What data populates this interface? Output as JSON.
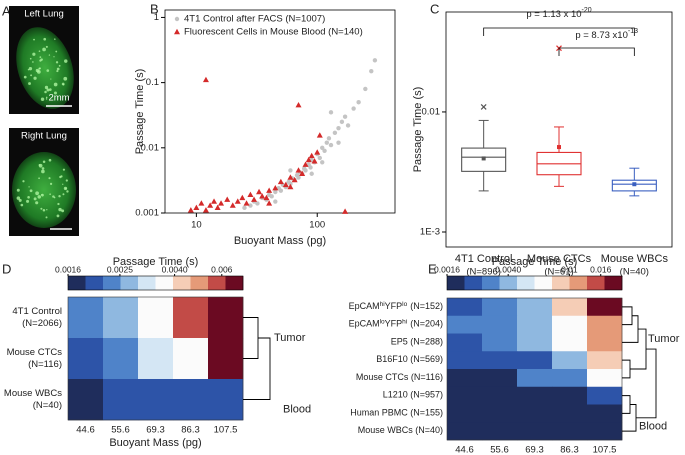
{
  "panel_a": {
    "label": "A",
    "images": [
      {
        "title": "Left Lung"
      },
      {
        "title": "Right Lung"
      }
    ],
    "scale_bar": "2mm"
  },
  "chart_data": [
    {
      "type": "scatter",
      "panel": "B",
      "x_label": "Buoyant Mass (pg)",
      "y_label": "Passage Time (s)",
      "xlog": true,
      "ylog": true,
      "xlim": [
        5.5,
        440
      ],
      "ylim": [
        0.001,
        1.3
      ],
      "xticks": [
        10,
        100
      ],
      "yticks": [
        0.001,
        0.01,
        0.1,
        1
      ],
      "legend": "upper left",
      "series": [
        {
          "name": "4T1 Control after FACS (N=1007)",
          "color": "#c4c4c4",
          "marker": "circle",
          "x": [
            25,
            28,
            30,
            32,
            35,
            38,
            40,
            42,
            45,
            48,
            50,
            52,
            55,
            58,
            60,
            62,
            65,
            68,
            70,
            72,
            75,
            78,
            80,
            85,
            88,
            90,
            95,
            100,
            105,
            110,
            115,
            120,
            125,
            130,
            140,
            150,
            160,
            170,
            180,
            200,
            220,
            250,
            280,
            300,
            130,
            60,
            90,
            45,
            110,
            150
          ],
          "values": [
            0.0012,
            0.0013,
            0.0015,
            0.0014,
            0.0017,
            0.0016,
            0.0019,
            0.0018,
            0.0021,
            0.0024,
            0.0022,
            0.0027,
            0.0025,
            0.003,
            0.0028,
            0.0034,
            0.0032,
            0.0038,
            0.0035,
            0.0042,
            0.004,
            0.0048,
            0.0045,
            0.0055,
            0.005,
            0.0065,
            0.006,
            0.008,
            0.007,
            0.01,
            0.009,
            0.012,
            0.014,
            0.011,
            0.017,
            0.02,
            0.025,
            0.03,
            0.022,
            0.04,
            0.05,
            0.08,
            0.15,
            0.22,
            0.035,
            0.0045,
            0.004,
            0.0015,
            0.006,
            0.012
          ]
        },
        {
          "name": "Fluorescent Cells in Mouse Blood (N=140)",
          "color": "#d42a2a",
          "marker": "triangle",
          "x": [
            9,
            10,
            11,
            12,
            13,
            14,
            15,
            16,
            18,
            20,
            22,
            24,
            26,
            28,
            30,
            33,
            35,
            38,
            40,
            45,
            50,
            55,
            60,
            65,
            70,
            75,
            80,
            85,
            90,
            95,
            100,
            12,
            70,
            105,
            170,
            60,
            40
          ],
          "values": [
            0.0011,
            0.0012,
            0.0014,
            0.0011,
            0.0013,
            0.0015,
            0.0012,
            0.0014,
            0.0016,
            0.0013,
            0.0015,
            0.0017,
            0.0014,
            0.0019,
            0.0016,
            0.0021,
            0.0018,
            0.0017,
            0.0022,
            0.0024,
            0.003,
            0.0027,
            0.0035,
            0.0032,
            0.0045,
            0.004,
            0.0055,
            0.0065,
            0.0075,
            0.0062,
            0.0085,
            0.11,
            0.045,
            0.0155,
            0.00105,
            0.0025,
            0.0014
          ]
        }
      ]
    },
    {
      "type": "box",
      "panel": "C",
      "y_label": "Passage Time (s)",
      "ylog": true,
      "ylim": [
        0.00075,
        0.068
      ],
      "yticks": [
        {
          "value": 0.001,
          "label": "1E-3"
        },
        0.01
      ],
      "categories": [
        "4T1 Control",
        "Mouse CTCs",
        "Mouse WBCs"
      ],
      "category_counts": [
        "(N=896)",
        "(N=61)",
        "(N=40)"
      ],
      "colors": [
        "#555555",
        "#e03030",
        "#3a5fc0"
      ],
      "boxes": [
        {
          "whisker_low": 0.0022,
          "q1": 0.0032,
          "median": 0.0042,
          "q3": 0.005,
          "whisker_high": 0.0085,
          "mean": 0.0041,
          "max": 0.011
        },
        {
          "whisker_low": 0.0024,
          "q1": 0.003,
          "median": 0.0037,
          "q3": 0.0046,
          "whisker_high": 0.0075,
          "mean": 0.0051,
          "max": 0.034
        },
        {
          "whisker_low": 0.002,
          "q1": 0.0022,
          "median": 0.0025,
          "q3": 0.0027,
          "whisker_high": 0.0034,
          "mean": 0.0025
        }
      ],
      "annotations": [
        {
          "text": "p = 1.13 x 10",
          "exponent": "-20"
        },
        {
          "text": "p = 8.73 x10",
          "exponent": "-13"
        }
      ]
    },
    {
      "type": "heatmap",
      "panel": "D",
      "colorbar_label": "Passage Time (s)",
      "x_label": "Buoyant Mass (pg)",
      "zlog": true,
      "zlim": [
        0.0016,
        0.0072
      ],
      "zticks": [
        0.0016,
        0.0025,
        {
          "value": 0.004,
          "label": "0.0040"
        },
        0.006
      ],
      "colormap": [
        "#1f2d5c",
        "#2d54a8",
        "#4f83c9",
        "#8fb8e0",
        "#d4e6f4",
        "#fbfbfb",
        "#f5cdb6",
        "#e59a78",
        "#c24b47",
        "#6b0a22"
      ],
      "categories": [
        44.6,
        55.6,
        69.3,
        86.3,
        107.5
      ],
      "rows": [
        {
          "name": "4T1 Control",
          "n": "(N=2066)"
        },
        {
          "name": "Mouse CTCs",
          "n": "(N=116)"
        },
        {
          "name": "Mouse WBCs",
          "n": "(N=40)"
        }
      ],
      "values": [
        [
          0.0022,
          0.0028,
          0.0037,
          0.0055,
          0.0072
        ],
        [
          0.0021,
          0.0022,
          0.003,
          0.0038,
          0.0072
        ],
        [
          0.0016,
          0.002,
          0.002,
          0.002,
          0.002
        ]
      ],
      "groups": [
        "Tumor",
        "Blood"
      ]
    },
    {
      "type": "heatmap",
      "panel": "E",
      "colorbar_label": "Passage Time (s)",
      "x_label": "Buoyant Mass (pg)",
      "zlog": true,
      "zlim": [
        0.0016,
        0.022
      ],
      "zticks": [
        0.0016,
        {
          "value": 0.004,
          "label": "0.0040"
        },
        0.01,
        0.016
      ],
      "colormap": [
        "#1f2d5c",
        "#2d54a8",
        "#4f83c9",
        "#8fb8e0",
        "#d4e6f4",
        "#fbfbfb",
        "#f5cdb6",
        "#e59a78",
        "#c24b47",
        "#6b0a22"
      ],
      "categories": [
        44.6,
        55.6,
        69.3,
        86.3,
        107.5
      ],
      "rows": [
        {
          "parts": [
            "EpCAM",
            "hi",
            "YFP",
            "lo",
            "(N=152)"
          ]
        },
        {
          "parts": [
            "EpCAM",
            "lo",
            "YFP",
            "hi",
            "(N=204)"
          ]
        },
        {
          "parts": [
            "EP5 (N=288)"
          ]
        },
        {
          "parts": [
            "B16F10 (N=569)"
          ]
        },
        {
          "parts": [
            "Mouse CTCs (N=116)"
          ]
        },
        {
          "parts": [
            "L1210 (N=957)"
          ]
        },
        {
          "parts": [
            "Human PBMC (N=155)"
          ]
        },
        {
          "parts": [
            "Mouse WBCs (N=40)"
          ]
        }
      ],
      "values": [
        [
          0.0022,
          0.003,
          0.0045,
          0.009,
          0.02
        ],
        [
          0.0035,
          0.003,
          0.0045,
          0.006,
          0.012
        ],
        [
          0.0025,
          0.003,
          0.0045,
          0.0065,
          0.012
        ],
        [
          0.0025,
          0.0022,
          0.0025,
          0.0038,
          0.0085
        ],
        [
          0.002,
          0.002,
          0.003,
          0.0032,
          0.006
        ],
        [
          0.0016,
          0.0016,
          0.002,
          0.002,
          0.0025
        ],
        [
          0.0016,
          0.0016,
          0.002,
          0.002,
          0.002
        ],
        [
          0.0016,
          0.0016,
          0.002,
          0.0016,
          0.002
        ]
      ],
      "groups": [
        "Tumor",
        "Blood"
      ]
    }
  ]
}
